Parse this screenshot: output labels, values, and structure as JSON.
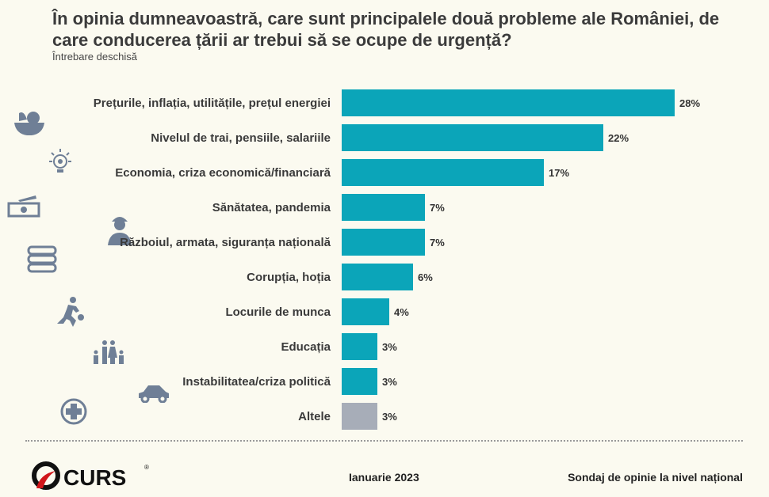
{
  "title": "În opinia dumneavoastră, care sunt principalele două probleme ale României, de care conducerea țării ar trebui să se ocupe de urgență?",
  "subtitle": "Întrebare deschisă",
  "chart_data": {
    "type": "bar",
    "orientation": "horizontal",
    "categories": [
      "Prețurile, inflația, utilitățile, prețul energiei",
      "Nivelul de trai, pensiile, salariile",
      "Economia, criza economică/financiară",
      "Sănătatea, pandemia",
      "Războiul, armata, siguranța națională",
      "Corupția, hoția",
      "Locurile de munca",
      "Educația",
      "Instabilitatea/criza politică",
      "Altele"
    ],
    "values": [
      28,
      22,
      17,
      7,
      7,
      6,
      4,
      3,
      3,
      3
    ],
    "data_labels": [
      "28%",
      "22%",
      "17%",
      "7%",
      "7%",
      "6%",
      "4%",
      "3%",
      "3%",
      "3%"
    ],
    "unit": "%",
    "colors": {
      "main": "#0ba5b9",
      "other": "#a7adb8"
    },
    "grid": false,
    "xlim": [
      0,
      30
    ]
  },
  "icons": [
    "fruit-bowl-icon",
    "lightbulb-gear-icon",
    "money-icon",
    "soldier-icon",
    "books-icon",
    "runner-icon",
    "family-icon",
    "car-icon",
    "medical-cross-icon"
  ],
  "footer": {
    "logo": "CURS",
    "date": "Ianuarie 2023",
    "source": "Sondaj de opinie la nivel național"
  }
}
